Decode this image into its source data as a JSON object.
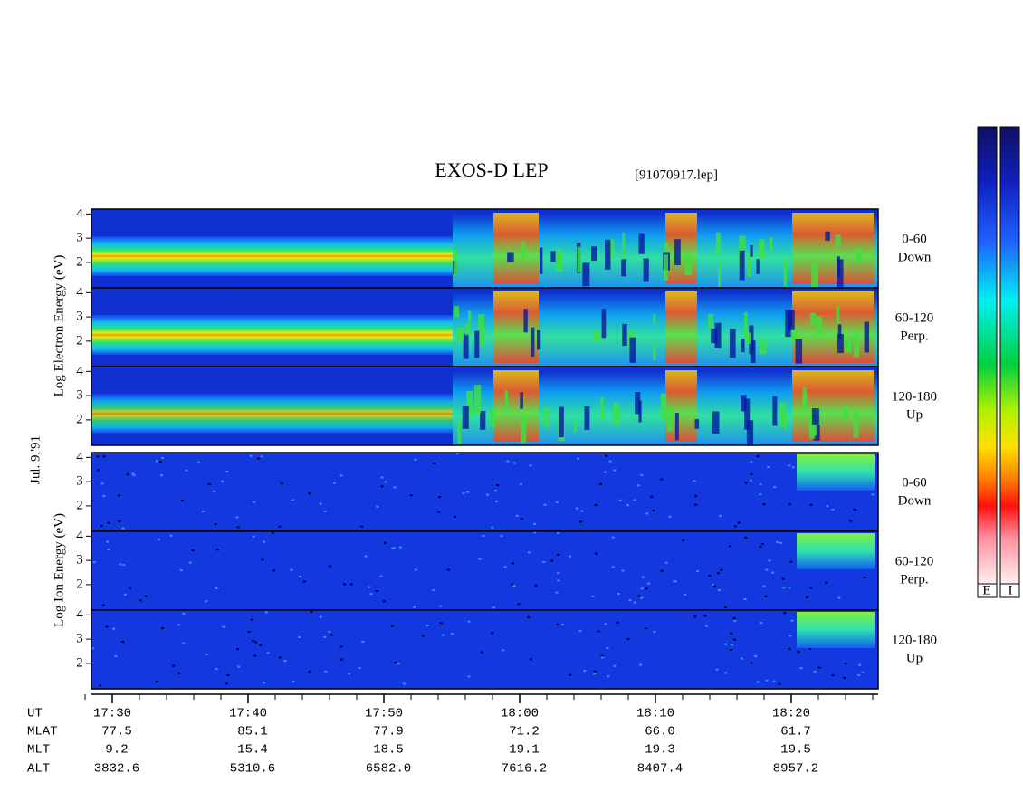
{
  "chart_data": {
    "type": "spectrogram",
    "title": "EXOS-D LEP",
    "file": "[91070917.lep]",
    "date": "Jul. 9,'91",
    "electron_axis_label": "Log Electron Energy (eV)",
    "ion_axis_label": "Log Ion Energy (eV)",
    "ylim": [
      0.95,
      4.2
    ],
    "yticks": [
      2,
      3,
      4
    ],
    "pitch_angles": [
      {
        "range": "0-60",
        "direction": "Down"
      },
      {
        "range": "60-120",
        "direction": "Perp."
      },
      {
        "range": "120-180",
        "direction": "Up"
      }
    ],
    "colorbar_labels": [
      "E",
      "I"
    ],
    "ephemeris": {
      "labels": [
        "UT",
        "MLAT",
        "MLT",
        "ALT"
      ],
      "rows": [
        [
          "17:30",
          "17:40",
          "17:50",
          "18:00",
          "18:10",
          "18:20"
        ],
        [
          "77.5",
          "85.1",
          "77.9",
          "71.2",
          "66.0",
          "61.7"
        ],
        [
          "9.2",
          "15.4",
          "18.5",
          "19.1",
          "19.3",
          "19.5"
        ],
        [
          "3832.6",
          "5310.6",
          "6582.0",
          "7616.2",
          "8407.4",
          "8957.2"
        ]
      ]
    }
  }
}
